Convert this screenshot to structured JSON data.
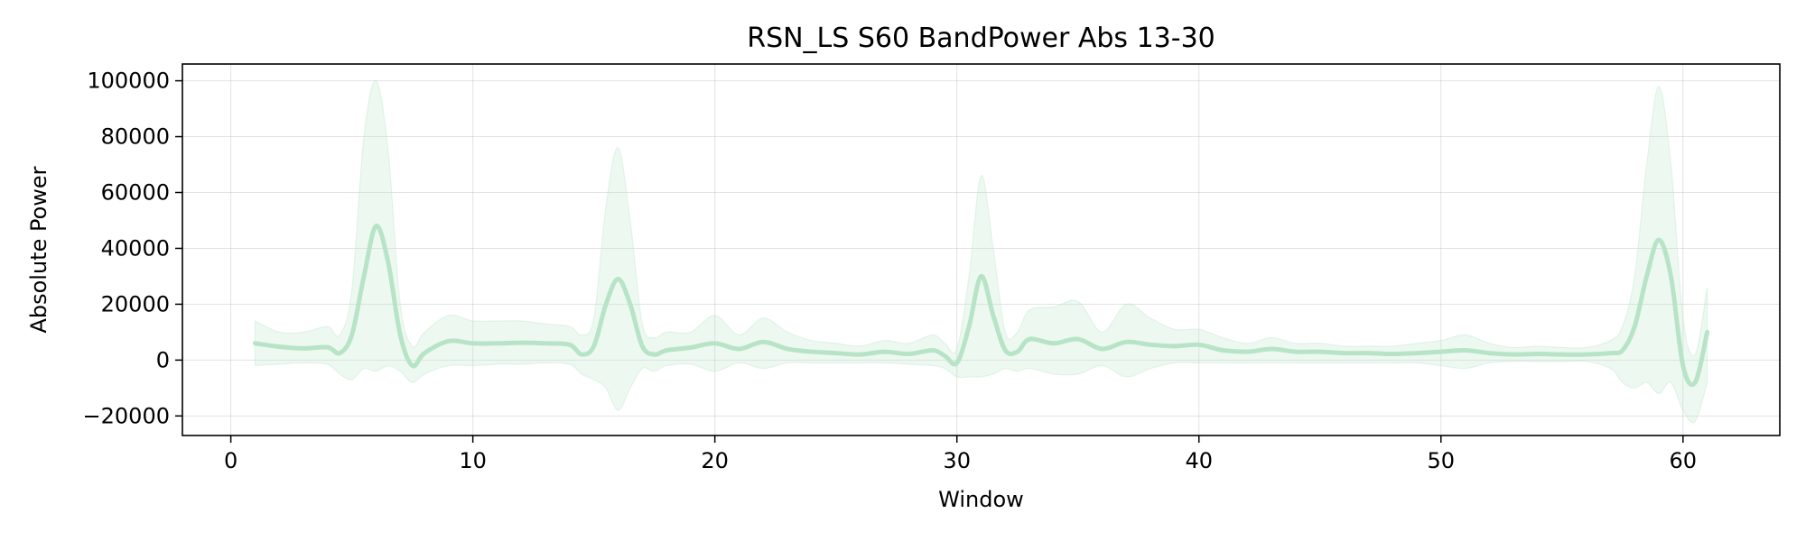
{
  "chart_data": {
    "type": "line",
    "title": "RSN_LS S60 BandPower Abs 13-30",
    "xlabel": "Window",
    "ylabel": "Absolute Power",
    "xlim": [
      -2,
      64
    ],
    "ylim": [
      -27000,
      106000
    ],
    "xticks": [
      0,
      10,
      20,
      30,
      40,
      50,
      60
    ],
    "yticks": [
      -20000,
      0,
      20000,
      40000,
      60000,
      80000,
      100000
    ],
    "ytick_labels": [
      "−20000",
      "0",
      "20000",
      "40000",
      "60000",
      "80000",
      "100000"
    ],
    "grid": true,
    "colors": {
      "line": "#b7e4c7",
      "band": "#b7e4c7"
    },
    "series": [
      {
        "x": [
          1,
          2,
          3,
          4,
          4.5,
          5,
          5.5,
          6,
          6.5,
          7,
          7.5,
          8,
          9,
          10,
          11,
          12,
          13,
          14,
          14.5,
          15,
          15.5,
          16,
          16.5,
          17,
          17.5,
          18,
          19,
          20,
          21,
          22,
          23,
          24,
          25,
          26,
          27,
          28,
          29,
          29.5,
          30,
          30.5,
          31,
          31.5,
          32,
          32.5,
          33,
          34,
          35,
          36,
          37,
          38,
          39,
          40,
          41,
          42,
          43,
          44,
          45,
          46,
          47,
          48,
          49,
          50,
          51,
          52,
          53,
          54,
          55,
          56,
          57,
          57.5,
          58,
          58.5,
          59,
          59.5,
          60,
          60.5,
          61
        ],
        "mean": [
          6000,
          4800,
          4200,
          4600,
          2500,
          9000,
          30000,
          48000,
          35000,
          9000,
          -2000,
          2500,
          6800,
          6000,
          6000,
          6200,
          6000,
          5500,
          2000,
          5000,
          20000,
          29000,
          20000,
          5000,
          2000,
          3500,
          4500,
          6000,
          4000,
          6500,
          4000,
          3000,
          2500,
          2000,
          3000,
          2200,
          3500,
          1500,
          -1000,
          12000,
          30000,
          16000,
          3500,
          3000,
          7500,
          6000,
          7500,
          4000,
          6500,
          5500,
          5000,
          5500,
          3500,
          3000,
          4000,
          3000,
          3000,
          2500,
          2500,
          2200,
          2500,
          3000,
          3500,
          2500,
          2000,
          2200,
          2000,
          2000,
          2500,
          3500,
          12000,
          30000,
          43000,
          30000,
          -2000,
          -8000,
          10000
        ],
        "upper": [
          14000,
          10000,
          10000,
          12000,
          9000,
          25000,
          80000,
          100000,
          75000,
          20000,
          5000,
          10000,
          16000,
          14000,
          14000,
          14000,
          13000,
          12000,
          9000,
          15000,
          55000,
          76000,
          50000,
          13000,
          8000,
          10000,
          10000,
          16000,
          9000,
          15000,
          10000,
          7000,
          6000,
          5000,
          7000,
          6000,
          9000,
          6000,
          4000,
          30000,
          66000,
          40000,
          10000,
          10000,
          18000,
          19000,
          21000,
          10000,
          20000,
          15000,
          11000,
          11000,
          8000,
          6000,
          8000,
          6000,
          6000,
          5000,
          5000,
          5000,
          6000,
          7000,
          9000,
          6000,
          4500,
          5000,
          4500,
          4500,
          7000,
          12000,
          30000,
          70000,
          98000,
          70000,
          15000,
          2000,
          26000
        ],
        "lower": [
          -2000,
          -1500,
          -1000,
          -1500,
          -5000,
          -7000,
          -3000,
          -4000,
          -2000,
          -4000,
          -8000,
          -5000,
          -2000,
          -2000,
          -1500,
          -1500,
          -1000,
          -1500,
          -5000,
          -7000,
          -10000,
          -18000,
          -10000,
          -3000,
          -4000,
          -2000,
          -1500,
          -4000,
          -1000,
          -3000,
          -1000,
          -1000,
          -1000,
          -1000,
          -1000,
          -1500,
          -2000,
          -3000,
          -6000,
          -6000,
          -6000,
          -5000,
          -3000,
          -4000,
          -3000,
          -5000,
          -5000,
          -2000,
          -6000,
          -3000,
          -1000,
          -1000,
          -1000,
          -1000,
          -1000,
          -1000,
          -1000,
          -1000,
          -1000,
          -1000,
          -1000,
          -2000,
          -3000,
          -1000,
          -500,
          -500,
          -500,
          -500,
          -3000,
          -8000,
          -10000,
          -8000,
          -12000,
          -8000,
          -18000,
          -22000,
          -8000
        ]
      }
    ]
  }
}
